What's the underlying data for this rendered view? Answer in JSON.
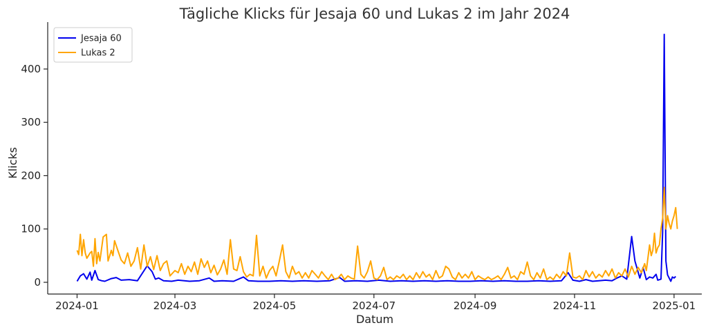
{
  "chart_data": {
    "type": "line",
    "title": "Tägliche Klicks für Jesaja 60 und Lukas 2 im Jahr 2024",
    "xlabel": "Datum",
    "ylabel": "Klicks",
    "x_range": [
      "2024-01-01",
      "2024-12-31"
    ],
    "xlim": [
      "2023-12-14",
      "2025-01-18"
    ],
    "ylim": [
      -22,
      488
    ],
    "x_ticks": [
      "2024-01",
      "2024-03",
      "2024-05",
      "2024-07",
      "2024-09",
      "2024-11",
      "2025-01"
    ],
    "y_ticks": [
      0,
      100,
      200,
      300,
      400
    ],
    "grid": false,
    "legend_position": "top-left",
    "series": [
      {
        "name": "Jesaja 60",
        "color": "#0000ee",
        "points": [
          [
            "2024-01-01",
            2
          ],
          [
            "2024-01-03",
            12
          ],
          [
            "2024-01-05",
            16
          ],
          [
            "2024-01-07",
            6
          ],
          [
            "2024-01-09",
            19
          ],
          [
            "2024-01-10",
            4
          ],
          [
            "2024-01-12",
            22
          ],
          [
            "2024-01-14",
            5
          ],
          [
            "2024-01-16",
            3
          ],
          [
            "2024-01-18",
            2
          ],
          [
            "2024-01-22",
            7
          ],
          [
            "2024-01-25",
            9
          ],
          [
            "2024-01-28",
            4
          ],
          [
            "2024-02-02",
            5
          ],
          [
            "2024-02-07",
            3
          ],
          [
            "2024-02-13",
            31
          ],
          [
            "2024-02-16",
            20
          ],
          [
            "2024-02-18",
            6
          ],
          [
            "2024-02-20",
            8
          ],
          [
            "2024-02-23",
            3
          ],
          [
            "2024-02-28",
            2
          ],
          [
            "2024-03-03",
            4
          ],
          [
            "2024-03-10",
            2
          ],
          [
            "2024-03-16",
            3
          ],
          [
            "2024-03-22",
            8
          ],
          [
            "2024-03-25",
            2
          ],
          [
            "2024-03-30",
            3
          ],
          [
            "2024-04-06",
            2
          ],
          [
            "2024-04-12",
            10
          ],
          [
            "2024-04-15",
            3
          ],
          [
            "2024-04-21",
            2
          ],
          [
            "2024-04-28",
            2
          ],
          [
            "2024-05-05",
            3
          ],
          [
            "2024-05-12",
            2
          ],
          [
            "2024-05-19",
            3
          ],
          [
            "2024-05-27",
            2
          ],
          [
            "2024-06-04",
            3
          ],
          [
            "2024-06-10",
            9
          ],
          [
            "2024-06-13",
            2
          ],
          [
            "2024-06-20",
            3
          ],
          [
            "2024-06-27",
            2
          ],
          [
            "2024-07-04",
            4
          ],
          [
            "2024-07-11",
            2
          ],
          [
            "2024-07-18",
            3
          ],
          [
            "2024-07-25",
            2
          ],
          [
            "2024-08-01",
            3
          ],
          [
            "2024-08-08",
            2
          ],
          [
            "2024-08-15",
            3
          ],
          [
            "2024-08-22",
            2
          ],
          [
            "2024-08-29",
            2
          ],
          [
            "2024-09-05",
            3
          ],
          [
            "2024-09-12",
            2
          ],
          [
            "2024-09-19",
            3
          ],
          [
            "2024-09-26",
            2
          ],
          [
            "2024-10-03",
            2
          ],
          [
            "2024-10-10",
            3
          ],
          [
            "2024-10-17",
            2
          ],
          [
            "2024-10-24",
            3
          ],
          [
            "2024-10-28",
            18
          ],
          [
            "2024-10-31",
            4
          ],
          [
            "2024-11-04",
            2
          ],
          [
            "2024-11-08",
            5
          ],
          [
            "2024-11-12",
            2
          ],
          [
            "2024-11-16",
            3
          ],
          [
            "2024-11-20",
            4
          ],
          [
            "2024-11-24",
            3
          ],
          [
            "2024-11-27",
            8
          ],
          [
            "2024-11-30",
            12
          ],
          [
            "2024-12-03",
            6
          ],
          [
            "2024-12-06",
            86
          ],
          [
            "2024-12-08",
            40
          ],
          [
            "2024-12-11",
            8
          ],
          [
            "2024-12-13",
            28
          ],
          [
            "2024-12-15",
            5
          ],
          [
            "2024-12-17",
            10
          ],
          [
            "2024-12-19",
            8
          ],
          [
            "2024-12-21",
            15
          ],
          [
            "2024-12-22",
            4
          ],
          [
            "2024-12-24",
            6
          ],
          [
            "2024-12-25",
            95
          ],
          [
            "2024-12-26",
            465
          ],
          [
            "2024-12-27",
            40
          ],
          [
            "2024-12-28",
            14
          ],
          [
            "2024-12-29",
            8
          ],
          [
            "2024-12-30",
            2
          ],
          [
            "2024-12-31",
            10
          ],
          [
            "2025-01-01",
            8
          ],
          [
            "2025-01-02",
            11
          ]
        ]
      },
      {
        "name": "Lukas 2",
        "color": "#ffa500",
        "points": [
          [
            "2024-01-01",
            60
          ],
          [
            "2024-01-02",
            52
          ],
          [
            "2024-01-03",
            90
          ],
          [
            "2024-01-04",
            50
          ],
          [
            "2024-01-05",
            80
          ],
          [
            "2024-01-06",
            55
          ],
          [
            "2024-01-07",
            45
          ],
          [
            "2024-01-09",
            55
          ],
          [
            "2024-01-10",
            58
          ],
          [
            "2024-01-11",
            30
          ],
          [
            "2024-01-12",
            82
          ],
          [
            "2024-01-13",
            35
          ],
          [
            "2024-01-14",
            56
          ],
          [
            "2024-01-15",
            40
          ],
          [
            "2024-01-17",
            85
          ],
          [
            "2024-01-19",
            90
          ],
          [
            "2024-01-20",
            40
          ],
          [
            "2024-01-22",
            60
          ],
          [
            "2024-01-23",
            50
          ],
          [
            "2024-01-24",
            78
          ],
          [
            "2024-01-26",
            60
          ],
          [
            "2024-01-28",
            42
          ],
          [
            "2024-01-30",
            35
          ],
          [
            "2024-02-01",
            55
          ],
          [
            "2024-02-03",
            30
          ],
          [
            "2024-02-05",
            40
          ],
          [
            "2024-02-07",
            65
          ],
          [
            "2024-02-09",
            25
          ],
          [
            "2024-02-11",
            70
          ],
          [
            "2024-02-13",
            30
          ],
          [
            "2024-02-15",
            48
          ],
          [
            "2024-02-17",
            24
          ],
          [
            "2024-02-19",
            50
          ],
          [
            "2024-02-21",
            22
          ],
          [
            "2024-02-23",
            35
          ],
          [
            "2024-02-25",
            40
          ],
          [
            "2024-02-27",
            12
          ],
          [
            "2024-03-01",
            22
          ],
          [
            "2024-03-03",
            18
          ],
          [
            "2024-03-05",
            35
          ],
          [
            "2024-03-07",
            15
          ],
          [
            "2024-03-09",
            30
          ],
          [
            "2024-03-11",
            20
          ],
          [
            "2024-03-13",
            38
          ],
          [
            "2024-03-15",
            15
          ],
          [
            "2024-03-17",
            44
          ],
          [
            "2024-03-19",
            28
          ],
          [
            "2024-03-21",
            40
          ],
          [
            "2024-03-23",
            18
          ],
          [
            "2024-03-25",
            32
          ],
          [
            "2024-03-27",
            14
          ],
          [
            "2024-03-29",
            25
          ],
          [
            "2024-03-31",
            42
          ],
          [
            "2024-04-02",
            15
          ],
          [
            "2024-04-04",
            80
          ],
          [
            "2024-04-06",
            25
          ],
          [
            "2024-04-08",
            22
          ],
          [
            "2024-04-10",
            48
          ],
          [
            "2024-04-12",
            20
          ],
          [
            "2024-04-14",
            10
          ],
          [
            "2024-04-16",
            15
          ],
          [
            "2024-04-18",
            12
          ],
          [
            "2024-04-20",
            88
          ],
          [
            "2024-04-22",
            12
          ],
          [
            "2024-04-24",
            30
          ],
          [
            "2024-04-26",
            8
          ],
          [
            "2024-04-28",
            22
          ],
          [
            "2024-04-30",
            30
          ],
          [
            "2024-05-02",
            12
          ],
          [
            "2024-05-04",
            40
          ],
          [
            "2024-05-06",
            70
          ],
          [
            "2024-05-08",
            20
          ],
          [
            "2024-05-10",
            8
          ],
          [
            "2024-05-12",
            30
          ],
          [
            "2024-05-14",
            15
          ],
          [
            "2024-05-16",
            20
          ],
          [
            "2024-05-18",
            8
          ],
          [
            "2024-05-20",
            18
          ],
          [
            "2024-05-22",
            8
          ],
          [
            "2024-05-24",
            22
          ],
          [
            "2024-05-26",
            15
          ],
          [
            "2024-05-28",
            8
          ],
          [
            "2024-05-30",
            20
          ],
          [
            "2024-06-01",
            12
          ],
          [
            "2024-06-03",
            5
          ],
          [
            "2024-06-05",
            15
          ],
          [
            "2024-06-07",
            5
          ],
          [
            "2024-06-09",
            8
          ],
          [
            "2024-06-11",
            15
          ],
          [
            "2024-06-13",
            5
          ],
          [
            "2024-06-15",
            12
          ],
          [
            "2024-06-17",
            8
          ],
          [
            "2024-06-19",
            6
          ],
          [
            "2024-06-21",
            68
          ],
          [
            "2024-06-23",
            15
          ],
          [
            "2024-06-25",
            8
          ],
          [
            "2024-06-27",
            20
          ],
          [
            "2024-06-29",
            40
          ],
          [
            "2024-07-01",
            8
          ],
          [
            "2024-07-03",
            5
          ],
          [
            "2024-07-05",
            12
          ],
          [
            "2024-07-07",
            28
          ],
          [
            "2024-07-09",
            5
          ],
          [
            "2024-07-11",
            10
          ],
          [
            "2024-07-13",
            5
          ],
          [
            "2024-07-15",
            12
          ],
          [
            "2024-07-17",
            8
          ],
          [
            "2024-07-19",
            15
          ],
          [
            "2024-07-21",
            5
          ],
          [
            "2024-07-23",
            12
          ],
          [
            "2024-07-25",
            5
          ],
          [
            "2024-07-27",
            18
          ],
          [
            "2024-07-29",
            8
          ],
          [
            "2024-07-31",
            20
          ],
          [
            "2024-08-02",
            10
          ],
          [
            "2024-08-04",
            15
          ],
          [
            "2024-08-06",
            5
          ],
          [
            "2024-08-08",
            22
          ],
          [
            "2024-08-10",
            8
          ],
          [
            "2024-08-12",
            12
          ],
          [
            "2024-08-14",
            30
          ],
          [
            "2024-08-16",
            25
          ],
          [
            "2024-08-18",
            10
          ],
          [
            "2024-08-20",
            5
          ],
          [
            "2024-08-22",
            18
          ],
          [
            "2024-08-24",
            8
          ],
          [
            "2024-08-26",
            15
          ],
          [
            "2024-08-28",
            8
          ],
          [
            "2024-08-30",
            20
          ],
          [
            "2024-09-01",
            5
          ],
          [
            "2024-09-03",
            12
          ],
          [
            "2024-09-05",
            8
          ],
          [
            "2024-09-07",
            5
          ],
          [
            "2024-09-09",
            10
          ],
          [
            "2024-09-11",
            5
          ],
          [
            "2024-09-13",
            8
          ],
          [
            "2024-09-15",
            12
          ],
          [
            "2024-09-17",
            5
          ],
          [
            "2024-09-19",
            15
          ],
          [
            "2024-09-21",
            28
          ],
          [
            "2024-09-23",
            8
          ],
          [
            "2024-09-25",
            12
          ],
          [
            "2024-09-27",
            5
          ],
          [
            "2024-09-29",
            20
          ],
          [
            "2024-10-01",
            15
          ],
          [
            "2024-10-03",
            38
          ],
          [
            "2024-10-05",
            12
          ],
          [
            "2024-10-07",
            5
          ],
          [
            "2024-10-09",
            18
          ],
          [
            "2024-10-11",
            8
          ],
          [
            "2024-10-13",
            25
          ],
          [
            "2024-10-15",
            5
          ],
          [
            "2024-10-17",
            10
          ],
          [
            "2024-10-19",
            5
          ],
          [
            "2024-10-21",
            15
          ],
          [
            "2024-10-23",
            8
          ],
          [
            "2024-10-25",
            20
          ],
          [
            "2024-10-27",
            12
          ],
          [
            "2024-10-29",
            55
          ],
          [
            "2024-10-31",
            10
          ],
          [
            "2024-11-02",
            8
          ],
          [
            "2024-11-04",
            12
          ],
          [
            "2024-11-06",
            5
          ],
          [
            "2024-11-08",
            22
          ],
          [
            "2024-11-10",
            10
          ],
          [
            "2024-11-12",
            20
          ],
          [
            "2024-11-14",
            8
          ],
          [
            "2024-11-16",
            15
          ],
          [
            "2024-11-18",
            10
          ],
          [
            "2024-11-20",
            22
          ],
          [
            "2024-11-22",
            12
          ],
          [
            "2024-11-24",
            25
          ],
          [
            "2024-11-26",
            8
          ],
          [
            "2024-11-28",
            18
          ],
          [
            "2024-11-30",
            12
          ],
          [
            "2024-12-02",
            25
          ],
          [
            "2024-12-04",
            10
          ],
          [
            "2024-12-06",
            30
          ],
          [
            "2024-12-08",
            15
          ],
          [
            "2024-12-10",
            28
          ],
          [
            "2024-12-12",
            18
          ],
          [
            "2024-12-14",
            35
          ],
          [
            "2024-12-15",
            22
          ],
          [
            "2024-12-17",
            70
          ],
          [
            "2024-12-18",
            50
          ],
          [
            "2024-12-19",
            60
          ],
          [
            "2024-12-20",
            92
          ],
          [
            "2024-12-21",
            55
          ],
          [
            "2024-12-22",
            65
          ],
          [
            "2024-12-23",
            70
          ],
          [
            "2024-12-24",
            100
          ],
          [
            "2024-12-25",
            120
          ],
          [
            "2024-12-26",
            178
          ],
          [
            "2024-12-27",
            100
          ],
          [
            "2024-12-28",
            125
          ],
          [
            "2024-12-29",
            110
          ],
          [
            "2024-12-30",
            100
          ],
          [
            "2024-12-31",
            115
          ],
          [
            "2025-01-01",
            125
          ],
          [
            "2025-01-02",
            140
          ],
          [
            "2025-01-03",
            100
          ]
        ]
      }
    ]
  }
}
